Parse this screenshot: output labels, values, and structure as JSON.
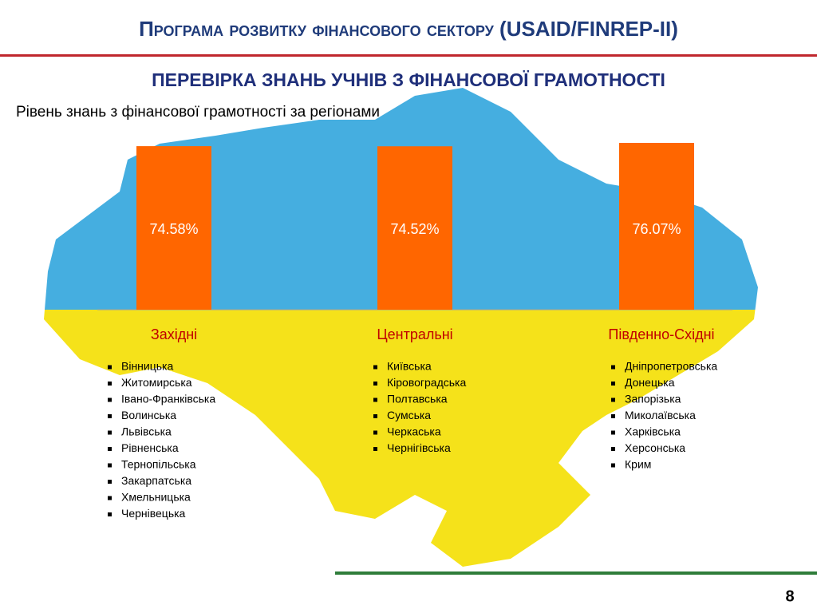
{
  "header": "Програма розвитку фінансового сектору (USAID/FINREP-II)",
  "slide_title": "ПЕРЕВІРКА ЗНАНЬ УЧНІВ З ФІНАНСОВОЇ ГРАМОТНОСТІ",
  "chart_data": {
    "type": "bar",
    "title": "Рівень знань з фінансової грамотності за регіонами",
    "categories": [
      "Західні",
      "Центральні",
      "Південно-Східні"
    ],
    "values": [
      74.58,
      74.52,
      76.07
    ],
    "value_labels": [
      "74.58%",
      "74.52%",
      "76.07%"
    ],
    "color": "#ff6600"
  },
  "region_lists": [
    [
      "Вінницька",
      "Житомирська",
      "Івано-Франківська",
      "Волинська",
      "Львівська",
      "Рівненська",
      "Тернопільська",
      "Закарпатська",
      "Хмельницька",
      "Чернівецька"
    ],
    [
      "Київська",
      "Кіровоградська",
      "Полтавська",
      "Сумська",
      "Черкаська",
      "Чернігівська"
    ],
    [
      "Дніпропетровська",
      "Донецька",
      "Запорізька",
      "Миколаївська",
      "Харківська",
      "Херсонська",
      "Крим"
    ]
  ],
  "page_number": "8"
}
